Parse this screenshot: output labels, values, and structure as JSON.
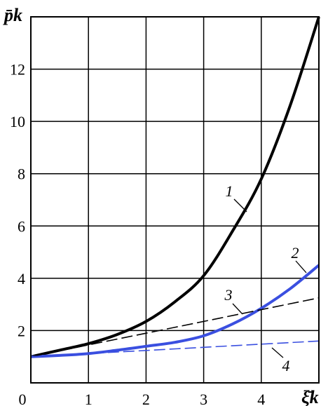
{
  "chart_data": {
    "type": "line",
    "ylabel": "p̄k",
    "xlabel": "ξ̄k",
    "xlim": [
      0,
      5
    ],
    "ylim": [
      0,
      14
    ],
    "xticks": [
      "0",
      "1",
      "2",
      "3",
      "4"
    ],
    "yticks": [
      "2",
      "4",
      "6",
      "8",
      "10",
      "12"
    ],
    "grid": true,
    "series": [
      {
        "name": "1",
        "color": "#000000",
        "style": "solid",
        "x": [
          0,
          0.5,
          1,
          1.5,
          2,
          2.5,
          3,
          3.5,
          4,
          4.5,
          5
        ],
        "y": [
          1.0,
          1.25,
          1.5,
          1.85,
          2.35,
          3.1,
          4.1,
          5.8,
          7.8,
          10.6,
          14.0
        ]
      },
      {
        "name": "2",
        "color": "#3a4fe0",
        "style": "solid",
        "x": [
          0,
          0.5,
          1,
          1.5,
          2,
          2.5,
          3,
          3.5,
          4,
          4.5,
          5
        ],
        "y": [
          1.0,
          1.05,
          1.12,
          1.25,
          1.4,
          1.55,
          1.8,
          2.25,
          2.85,
          3.6,
          4.5
        ]
      },
      {
        "name": "3",
        "color": "#000000",
        "style": "dashed",
        "x": [
          0,
          1,
          2,
          3,
          4,
          5
        ],
        "y": [
          1.0,
          1.45,
          1.9,
          2.35,
          2.8,
          3.25
        ]
      },
      {
        "name": "4",
        "color": "#3a4fe0",
        "style": "dashed",
        "x": [
          0,
          1,
          2,
          3,
          4,
          5
        ],
        "y": [
          1.0,
          1.12,
          1.24,
          1.36,
          1.48,
          1.6
        ]
      }
    ]
  }
}
